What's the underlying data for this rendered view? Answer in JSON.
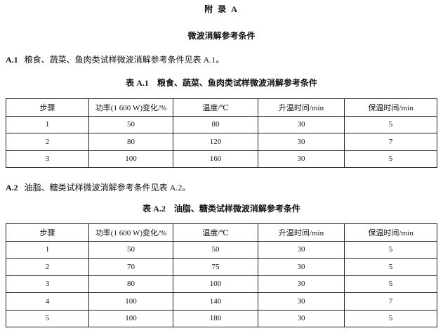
{
  "header": {
    "title": "附 录 A",
    "subtitle": "微波消解参考条件"
  },
  "sections": [
    {
      "label": "A.1",
      "text": "粮食、蔬菜、鱼肉类试样微波消解参考条件见表 A.1。",
      "caption": "表 A.1　粮食、蔬菜、鱼肉类试样微波消解参考条件",
      "table": {
        "columns": [
          "步骤",
          "功率(1 600 W)变化/%",
          "温度/℃",
          "升温时间/min",
          "保温时间/min"
        ],
        "rows": [
          [
            1,
            50,
            80,
            30,
            5
          ],
          [
            2,
            80,
            120,
            30,
            7
          ],
          [
            3,
            100,
            160,
            30,
            5
          ]
        ]
      }
    },
    {
      "label": "A.2",
      "text": "油脂、糖类试样微波消解参考条件见表 A.2。",
      "caption": "表 A.2　油脂、糖类试样微波消解参考条件",
      "table": {
        "columns": [
          "步骤",
          "功率(1 600 W)变化/%",
          "温度/℃",
          "升温时间/min",
          "保温时间/min"
        ],
        "rows": [
          [
            1,
            50,
            50,
            30,
            5
          ],
          [
            2,
            70,
            75,
            30,
            5
          ],
          [
            3,
            80,
            100,
            30,
            5
          ],
          [
            4,
            100,
            140,
            30,
            7
          ],
          [
            5,
            100,
            180,
            30,
            5
          ]
        ]
      }
    }
  ]
}
